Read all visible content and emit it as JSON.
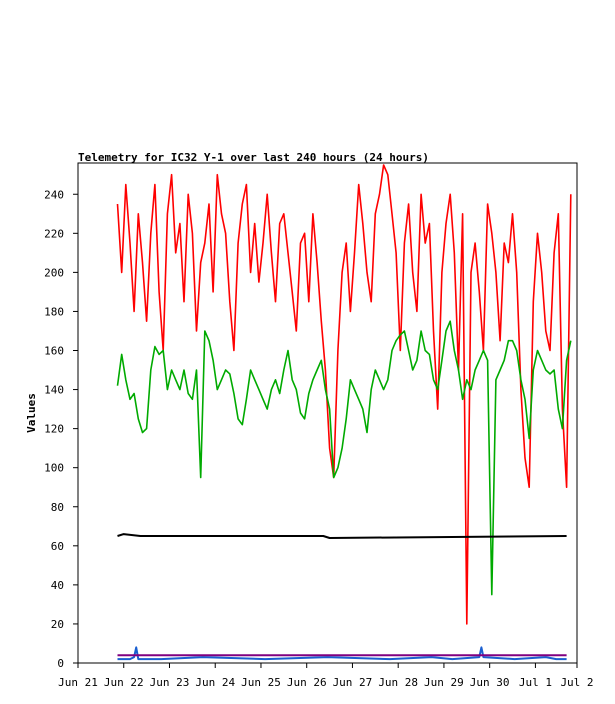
{
  "chart_data": {
    "type": "line",
    "title": "Telemetry for IC32 Y-1 over last 240 hours (24 hours)",
    "xlabel": "",
    "ylabel": "Values",
    "ylim": [
      0,
      256
    ],
    "xlim": [
      0,
      240
    ],
    "yticks": [
      0,
      20,
      40,
      60,
      80,
      100,
      120,
      140,
      160,
      180,
      200,
      220,
      240
    ],
    "xticks": [
      "Jun 21",
      "Jun 22",
      "Jun 23",
      "Jun 24",
      "Jun 25",
      "Jun 26",
      "Jun 27",
      "Jun 28",
      "Jun 29",
      "Jun 30",
      "Jul 1",
      "Jul 2"
    ],
    "xtick_hours": [
      0,
      22,
      44,
      66,
      88,
      110,
      132,
      154,
      176,
      198,
      220,
      240
    ],
    "grid": false,
    "legend": "none",
    "series": [
      {
        "color": "#ff0000",
        "x": [
          19,
          21,
          23,
          25,
          27,
          29,
          31,
          33,
          35,
          37,
          39,
          41,
          43,
          45,
          47,
          49,
          51,
          53,
          55,
          57,
          59,
          61,
          63,
          65,
          67,
          69,
          71,
          73,
          75,
          77,
          79,
          81,
          83,
          85,
          87,
          89,
          91,
          93,
          95,
          97,
          99,
          101,
          103,
          105,
          107,
          109,
          111,
          113,
          115,
          117,
          119,
          121,
          123,
          125,
          127,
          129,
          131,
          133,
          135,
          137,
          139,
          141,
          143,
          145,
          147,
          149,
          151,
          153,
          155,
          157,
          159,
          161,
          163,
          165,
          167,
          169,
          171,
          173,
          175,
          177,
          179,
          181,
          183,
          185,
          187,
          189,
          191,
          193,
          195,
          197,
          199,
          201,
          203,
          205,
          207,
          209,
          211,
          213,
          215,
          217,
          219,
          221,
          223,
          225,
          227,
          229,
          231,
          233,
          235,
          237
        ],
        "y": [
          235,
          200,
          245,
          215,
          180,
          230,
          205,
          175,
          220,
          245,
          190,
          160,
          230,
          250,
          210,
          225,
          185,
          240,
          220,
          170,
          205,
          215,
          235,
          190,
          250,
          230,
          220,
          185,
          160,
          215,
          235,
          245,
          200,
          225,
          195,
          215,
          240,
          210,
          185,
          225,
          230,
          210,
          190,
          170,
          215,
          220,
          185,
          230,
          205,
          175,
          150,
          110,
          95,
          160,
          200,
          215,
          180,
          210,
          245,
          225,
          200,
          185,
          230,
          240,
          255,
          250,
          230,
          210,
          160,
          215,
          235,
          200,
          180,
          240,
          215,
          225,
          170,
          130,
          200,
          225,
          240,
          210,
          150,
          230,
          20,
          200,
          215,
          190,
          160,
          235,
          220,
          200,
          165,
          215,
          205,
          230,
          200,
          140,
          105,
          90,
          185,
          220,
          200,
          170,
          160,
          210,
          230,
          130,
          90,
          240
        ]
      },
      {
        "color": "#00aa00",
        "x": [
          19,
          21,
          23,
          25,
          27,
          29,
          31,
          33,
          35,
          37,
          39,
          41,
          43,
          45,
          47,
          49,
          51,
          53,
          55,
          57,
          59,
          61,
          63,
          65,
          67,
          69,
          71,
          73,
          75,
          77,
          79,
          81,
          83,
          85,
          87,
          89,
          91,
          93,
          95,
          97,
          99,
          101,
          103,
          105,
          107,
          109,
          111,
          113,
          115,
          117,
          119,
          121,
          123,
          125,
          127,
          129,
          131,
          133,
          135,
          137,
          139,
          141,
          143,
          145,
          147,
          149,
          151,
          153,
          155,
          157,
          159,
          161,
          163,
          165,
          167,
          169,
          171,
          173,
          175,
          177,
          179,
          181,
          183,
          185,
          187,
          189,
          191,
          193,
          195,
          197,
          199,
          201,
          203,
          205,
          207,
          209,
          211,
          213,
          215,
          217,
          219,
          221,
          223,
          225,
          227,
          229,
          231,
          233,
          235,
          237
        ],
        "y": [
          142,
          158,
          145,
          135,
          138,
          125,
          118,
          120,
          150,
          162,
          158,
          160,
          140,
          150,
          145,
          140,
          150,
          138,
          135,
          150,
          95,
          170,
          165,
          155,
          140,
          145,
          150,
          148,
          138,
          125,
          122,
          135,
          150,
          145,
          140,
          135,
          130,
          140,
          145,
          138,
          150,
          160,
          145,
          140,
          128,
          125,
          138,
          145,
          150,
          155,
          140,
          130,
          95,
          100,
          110,
          125,
          145,
          140,
          135,
          130,
          118,
          140,
          150,
          145,
          140,
          145,
          160,
          165,
          168,
          170,
          160,
          150,
          155,
          170,
          160,
          158,
          145,
          140,
          155,
          170,
          175,
          160,
          150,
          135,
          145,
          140,
          150,
          155,
          160,
          155,
          35,
          145,
          150,
          155,
          165,
          165,
          160,
          145,
          135,
          115,
          150,
          160,
          155,
          150,
          148,
          150,
          130,
          120,
          155,
          165
        ]
      },
      {
        "color": "#000000",
        "x": [
          19,
          22,
          30,
          118,
          121,
          235
        ],
        "y": [
          65,
          66,
          65,
          65,
          64,
          65
        ]
      },
      {
        "color": "#1a5fd0",
        "x": [
          19,
          25,
          27,
          28,
          29,
          40,
          60,
          90,
          120,
          150,
          170,
          180,
          193,
          194,
          195,
          210,
          225,
          230,
          235
        ],
        "y": [
          2,
          2,
          3,
          8,
          2,
          2,
          3,
          2,
          3,
          2,
          3,
          2,
          3,
          8,
          3,
          2,
          3,
          2,
          2
        ]
      },
      {
        "color": "#800080",
        "x": [
          19,
          235
        ],
        "y": [
          4,
          4
        ]
      }
    ]
  }
}
